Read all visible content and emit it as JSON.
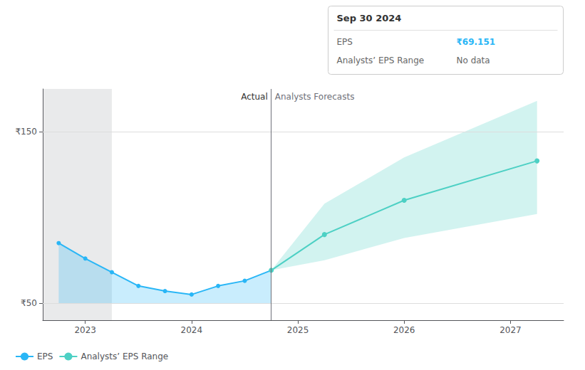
{
  "chart_data": {
    "type": "line",
    "xlim": [
      2022.6,
      2027.5
    ],
    "xticks": [
      2023,
      2024,
      2025,
      2026,
      2027
    ],
    "ylim": [
      40,
      175
    ],
    "yticks": [
      {
        "value": 50,
        "label": "₹50"
      },
      {
        "value": 150,
        "label": "₹150"
      }
    ],
    "grid": true,
    "legend": "lower left",
    "marker": "circle",
    "series": [
      {
        "name": "EPS",
        "color": "#29b6f6",
        "x": [
          2022.75,
          2023.0,
          2023.25,
          2023.5,
          2023.75,
          2024.0,
          2024.25,
          2024.5,
          2024.75
        ],
        "values": [
          85,
          76,
          68,
          60,
          57,
          55,
          60,
          63,
          69.151
        ],
        "fill_bottom": 50
      },
      {
        "name": "Analysts’ EPS Range",
        "color": "#4dd0c4",
        "x": [
          2024.75,
          2025.25,
          2026.0,
          2027.25
        ],
        "values": [
          69.151,
          90,
          110,
          133
        ],
        "upper": [
          69.151,
          108,
          135,
          168
        ],
        "lower": [
          69.151,
          75,
          88,
          102
        ]
      }
    ],
    "divider_x": 2024.75,
    "shaded_x": [
      2022.6,
      2023.25
    ],
    "annotations": [
      "Actual",
      "Analysts Forecasts"
    ],
    "tooltip": {
      "date": "Sep 30 2024",
      "rows": [
        {
          "label": "EPS",
          "value": "₹69.151"
        },
        {
          "label": "Analysts’ EPS Range",
          "value": "No data"
        }
      ]
    }
  }
}
